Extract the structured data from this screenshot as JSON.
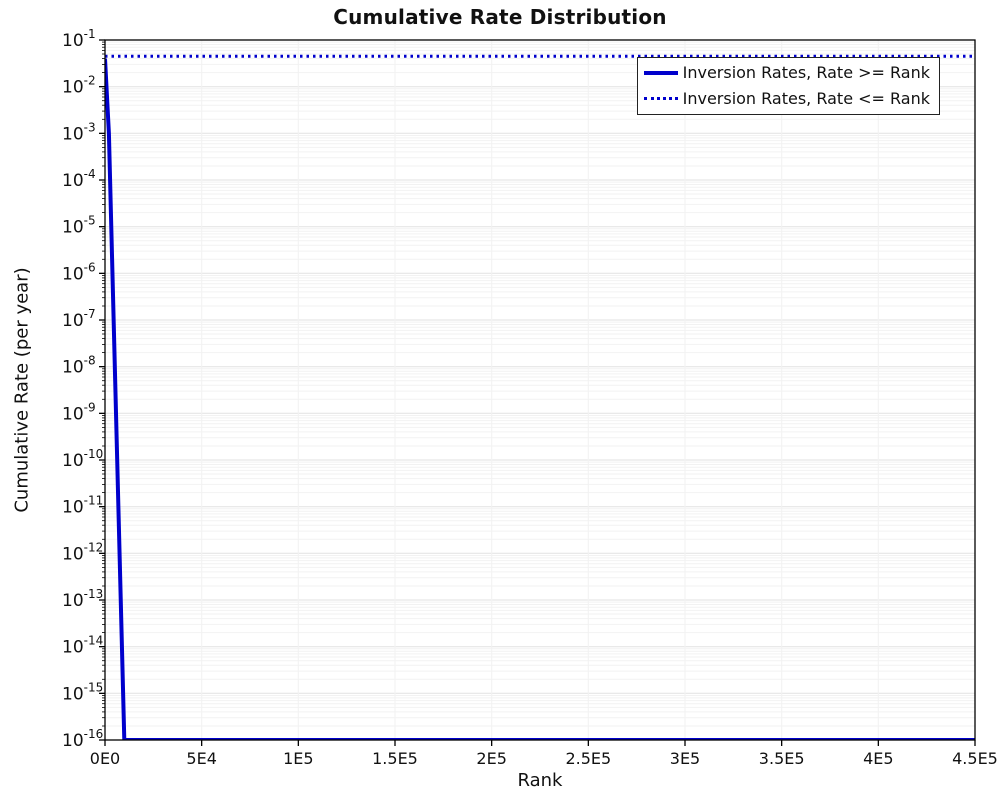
{
  "chart_data": {
    "type": "line",
    "title": "Cumulative Rate Distribution",
    "xlabel": "Rank",
    "ylabel": "Cumulative Rate (per year)",
    "accent_color": "#0000CC",
    "grid": true,
    "grid_minor_color": "#f2f2f2",
    "grid_major_color": "#e2e2e2",
    "legend_position": "top-right",
    "xlim": [
      0,
      450000
    ],
    "ylim": [
      1e-16,
      0.1
    ],
    "ylim_log": [
      -16,
      -1
    ],
    "x_ticks": [
      {
        "value": 0,
        "label": "0E0"
      },
      {
        "value": 50000,
        "label": "5E4"
      },
      {
        "value": 100000,
        "label": "1E5"
      },
      {
        "value": 150000,
        "label": "1.5E5"
      },
      {
        "value": 200000,
        "label": "2E5"
      },
      {
        "value": 250000,
        "label": "2.5E5"
      },
      {
        "value": 300000,
        "label": "3E5"
      },
      {
        "value": 350000,
        "label": "3.5E5"
      },
      {
        "value": 400000,
        "label": "4E5"
      },
      {
        "value": 450000,
        "label": "4.5E5"
      }
    ],
    "y_ticks": [
      {
        "exponent": -1,
        "label": "10^-1"
      },
      {
        "exponent": -2,
        "label": "10^-2"
      },
      {
        "exponent": -3,
        "label": "10^-3"
      },
      {
        "exponent": -4,
        "label": "10^-4"
      },
      {
        "exponent": -5,
        "label": "10^-5"
      },
      {
        "exponent": -6,
        "label": "10^-6"
      },
      {
        "exponent": -7,
        "label": "10^-7"
      },
      {
        "exponent": -8,
        "label": "10^-8"
      },
      {
        "exponent": -9,
        "label": "10^-9"
      },
      {
        "exponent": -10,
        "label": "10^-10"
      },
      {
        "exponent": -11,
        "label": "10^-11"
      },
      {
        "exponent": -12,
        "label": "10^-12"
      },
      {
        "exponent": -13,
        "label": "10^-13"
      },
      {
        "exponent": -14,
        "label": "10^-14"
      },
      {
        "exponent": -15,
        "label": "10^-15"
      },
      {
        "exponent": -16,
        "label": "10^-16"
      }
    ],
    "series": [
      {
        "name": "Inversion Rates, Rate >= Rank",
        "style": "solid",
        "color": "#0000CC",
        "width": 4,
        "points": [
          [
            0,
            0.04
          ],
          [
            2000,
            0.001
          ],
          [
            10000,
            1e-16
          ],
          [
            450000,
            1e-16
          ]
        ]
      },
      {
        "name": "Inversion Rates, Rate <= Rank",
        "style": "dotted",
        "color": "#0000CC",
        "width": 3,
        "points": [
          [
            0,
            0.045
          ],
          [
            450000,
            0.045
          ]
        ]
      }
    ]
  }
}
